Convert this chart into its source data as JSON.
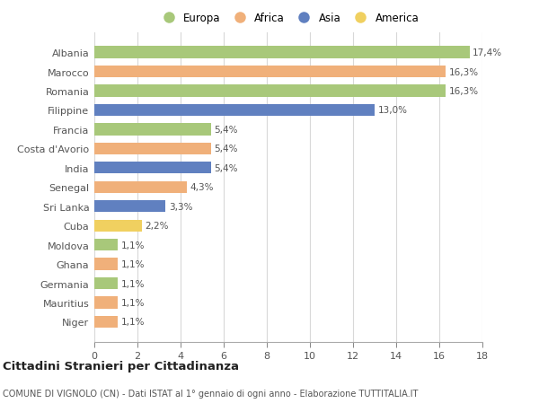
{
  "categories": [
    "Albania",
    "Marocco",
    "Romania",
    "Filippine",
    "Francia",
    "Costa d'Avorio",
    "India",
    "Senegal",
    "Sri Lanka",
    "Cuba",
    "Moldova",
    "Ghana",
    "Germania",
    "Mauritius",
    "Niger"
  ],
  "values": [
    17.4,
    16.3,
    16.3,
    13.0,
    5.4,
    5.4,
    5.4,
    4.3,
    3.3,
    2.2,
    1.1,
    1.1,
    1.1,
    1.1,
    1.1
  ],
  "labels": [
    "17,4%",
    "16,3%",
    "16,3%",
    "13,0%",
    "5,4%",
    "5,4%",
    "5,4%",
    "4,3%",
    "3,3%",
    "2,2%",
    "1,1%",
    "1,1%",
    "1,1%",
    "1,1%",
    "1,1%"
  ],
  "continents": [
    "Europa",
    "Africa",
    "Europa",
    "Asia",
    "Europa",
    "Africa",
    "Asia",
    "Africa",
    "Asia",
    "America",
    "Europa",
    "Africa",
    "Europa",
    "Africa",
    "Africa"
  ],
  "colors": {
    "Europa": "#a8c87a",
    "Africa": "#f0b07a",
    "Asia": "#6080c0",
    "America": "#f0d060"
  },
  "legend_order": [
    "Europa",
    "Africa",
    "Asia",
    "America"
  ],
  "title": "Cittadini Stranieri per Cittadinanza",
  "subtitle": "COMUNE DI VIGNOLO (CN) - Dati ISTAT al 1° gennaio di ogni anno - Elaborazione TUTTITALIA.IT",
  "xlim": [
    0,
    18
  ],
  "xticks": [
    0,
    2,
    4,
    6,
    8,
    10,
    12,
    14,
    16,
    18
  ],
  "background_color": "#ffffff",
  "grid_color": "#d8d8d8",
  "bar_height": 0.62
}
